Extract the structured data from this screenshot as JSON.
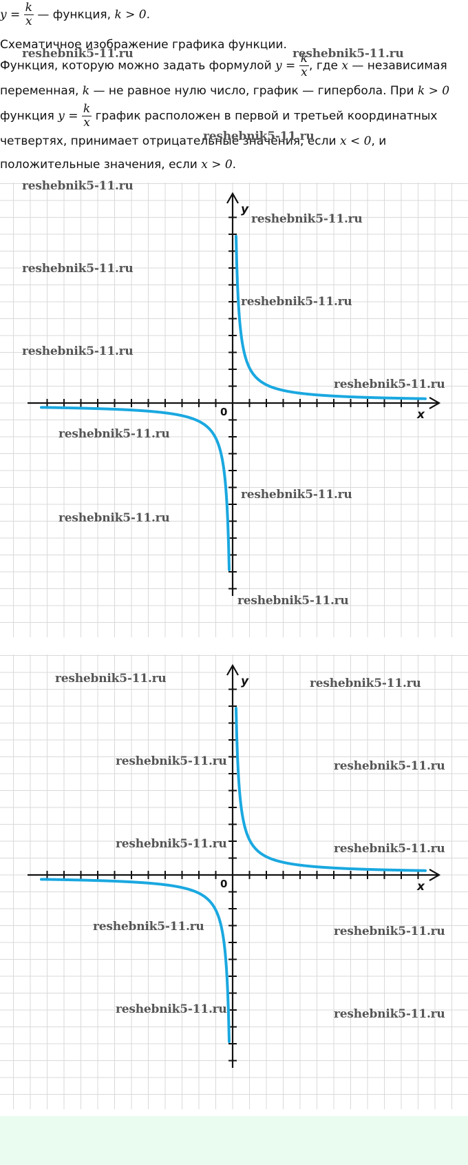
{
  "header": {
    "formula_lhs": "y =",
    "frac_num": "k",
    "frac_den": "x",
    "after_formula": "— функция,",
    "condition": "k > 0."
  },
  "subtitle": "Схематичное изображение графика функции.",
  "paragraph": {
    "p1": "Функция, которую можно задать формулой",
    "p1_formula_lhs": "y =",
    "p1b": ", где",
    "x_var": "x",
    "p1c": "— независимая переменная,",
    "k_var": "k",
    "p2": "— не равное нулю число, график — гипербола. При",
    "cond_k": "k > 0",
    "p3": "функция",
    "p3_formula_lhs": "y =",
    "p3b": "график расположен в первой и третьей координатных четвертях, принимает отрицательные значения, если",
    "cond_neg": "x < 0",
    "p3c": ", и положительные значения, если",
    "cond_pos": "x > 0",
    "p3d": "."
  },
  "graphs": [
    {
      "x_axis_label": "x",
      "y_axis_label": "y",
      "origin_label": "0"
    },
    {
      "x_axis_label": "x",
      "y_axis_label": "y",
      "origin_label": "0"
    }
  ],
  "watermark": "reshebnik5-11.ru",
  "colors": {
    "curve": "#1aa8e0",
    "axis": "#111111",
    "grid": "#d9d9d9",
    "footer": "#e9fcef"
  }
}
